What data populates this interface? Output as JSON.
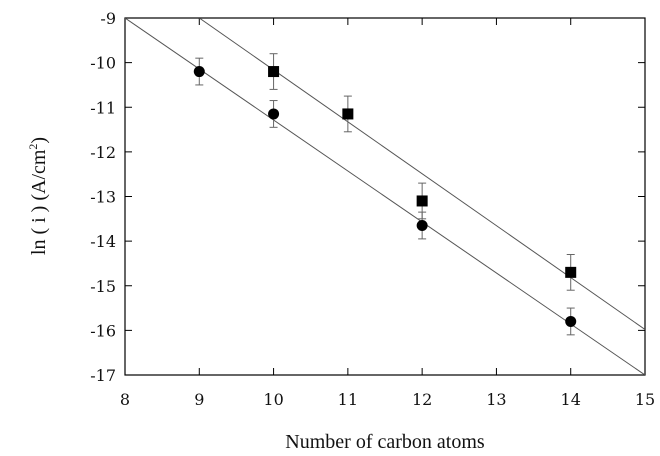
{
  "chart_data": {
    "type": "scatter",
    "title": "",
    "xlabel": "Number of carbon atoms",
    "ylabel_main": "ln ( i )  (A/cm",
    "ylabel_sup": "2",
    "ylabel_close": ")",
    "xlim": [
      8,
      15
    ],
    "ylim": [
      -17,
      -9
    ],
    "xticks": [
      "8",
      "9",
      "10",
      "11",
      "12",
      "13",
      "14",
      "15"
    ],
    "yticks": [
      "-9",
      "-10",
      "-11",
      "-12",
      "-13",
      "-14",
      "-15",
      "-16",
      "-17"
    ],
    "grid": false,
    "legend": "none",
    "series": [
      {
        "marker": "circle",
        "x": [
          9,
          10,
          12,
          14
        ],
        "y": [
          -10.2,
          -11.15,
          -13.65,
          -15.8
        ],
        "err": [
          0.3,
          0.3,
          0.3,
          0.3
        ],
        "fit": {
          "x": [
            8,
            15
          ],
          "y": [
            -9.0,
            -17.0
          ]
        }
      },
      {
        "marker": "square",
        "x": [
          10,
          11,
          12,
          14
        ],
        "y": [
          -10.2,
          -11.15,
          -13.1,
          -14.7
        ],
        "err": [
          0.4,
          0.4,
          0.4,
          0.4
        ],
        "fit": {
          "x": [
            9.0,
            15
          ],
          "y": [
            -9.0,
            -15.98
          ]
        }
      }
    ]
  }
}
